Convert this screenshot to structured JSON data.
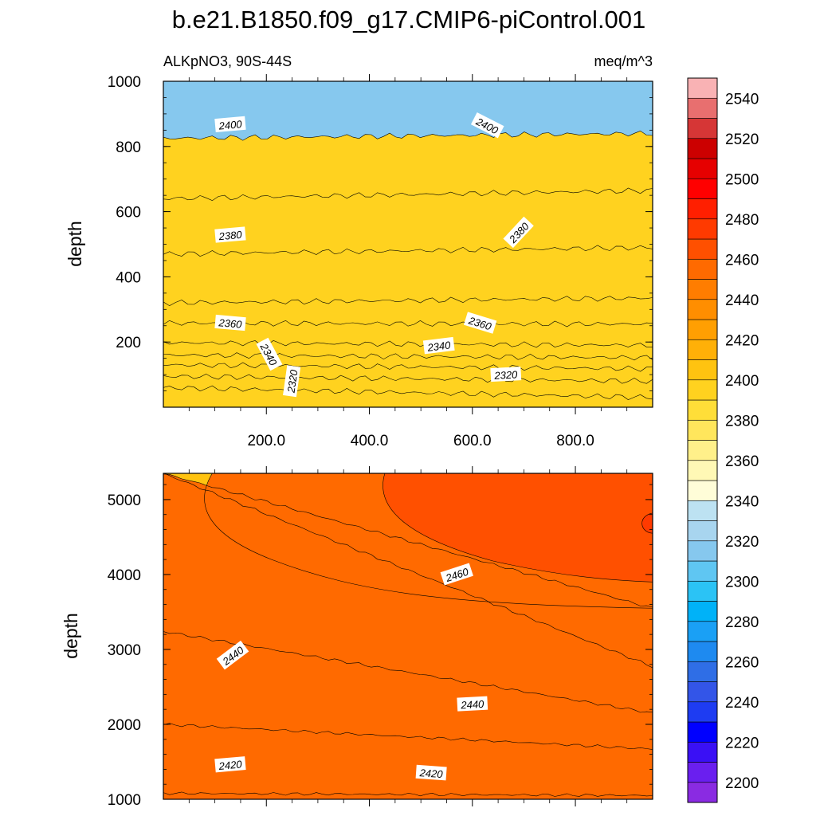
{
  "title": "b.e21.B1850.f09_g17.CMIP6-piControl.001",
  "subtitle_left": "ALKpNO3, 90S-44S",
  "subtitle_right": "meq/m^3",
  "chart_data": [
    {
      "type": "contour",
      "panel": "upper",
      "xlabel": "",
      "ylabel": "depth",
      "xlim": [
        0,
        950
      ],
      "ylim": [
        1000,
        0
      ],
      "x_ticks": [
        200,
        400,
        600,
        800
      ],
      "x_tick_labels": [
        "200.0",
        "400.0",
        "600.0",
        "800.0"
      ],
      "y_ticks": [
        200,
        400,
        600,
        800,
        1000
      ],
      "y_tick_labels": [
        "200",
        "400",
        "600",
        "800",
        "1000"
      ],
      "contours": [
        {
          "value": 2320,
          "depth_left": 60,
          "depth_right": 30
        },
        {
          "value": 2325,
          "depth_left": 95,
          "depth_right": 80
        },
        {
          "value": 2330,
          "depth_left": 130,
          "depth_right": 118
        },
        {
          "value": 2335,
          "depth_left": 160,
          "depth_right": 152
        },
        {
          "value": 2340,
          "depth_left": 198,
          "depth_right": 190
        },
        {
          "value": 2350,
          "depth_left": 258,
          "depth_right": 255
        },
        {
          "value": 2360,
          "depth_left": 320,
          "depth_right": 335
        },
        {
          "value": 2370,
          "depth_left": 470,
          "depth_right": 490
        },
        {
          "value": 2380,
          "depth_left": 640,
          "depth_right": 665
        },
        {
          "value": 2390,
          "depth_left": 825,
          "depth_right": 840
        }
      ],
      "contour_labels": [
        {
          "text": "2320",
          "x": 250,
          "depth": 80,
          "angle": -82
        },
        {
          "text": "2320",
          "x": 665,
          "depth": 100,
          "angle": -3
        },
        {
          "text": "2340",
          "x": 205,
          "depth": 162,
          "angle": 62
        },
        {
          "text": "2340",
          "x": 535,
          "depth": 188,
          "angle": -7
        },
        {
          "text": "2360",
          "x": 130,
          "depth": 258,
          "angle": 5
        },
        {
          "text": "2360",
          "x": 615,
          "depth": 258,
          "angle": 17
        },
        {
          "text": "2380",
          "x": 130,
          "depth": 528,
          "angle": -5
        },
        {
          "text": "2380",
          "x": 690,
          "depth": 536,
          "angle": -47
        },
        {
          "text": "2400",
          "x": 130,
          "depth": 867,
          "angle": -5
        },
        {
          "text": "2400",
          "x": 629,
          "depth": 864,
          "angle": 27
        }
      ]
    },
    {
      "type": "contour",
      "panel": "lower",
      "xlabel": "",
      "ylabel": "depth",
      "xlim": [
        0,
        950
      ],
      "ylim": [
        5350,
        1000
      ],
      "x_ticks": [
        200,
        400,
        600,
        800
      ],
      "y_ticks": [
        1000,
        2000,
        3000,
        4000,
        5000
      ],
      "y_tick_labels": [
        "1000",
        "2000",
        "3000",
        "4000",
        "5000"
      ],
      "contours": [
        {
          "value": 2410,
          "depth_left": 1080,
          "depth_right": 1050
        },
        {
          "value": 2420,
          "depth_left": 2000,
          "depth_right": 1670
        },
        {
          "value": 2430,
          "depth_left": 3240,
          "depth_right": 2150
        },
        {
          "value": 2440,
          "depth_left": 5350,
          "depth_right": 2770
        },
        {
          "value": 2450,
          "depth_left": 5350,
          "depth_right": 3550
        }
      ],
      "contour_labels": [
        {
          "text": "2420",
          "x": 130,
          "depth": 1460,
          "angle": -5
        },
        {
          "text": "2420",
          "x": 520,
          "depth": 1350,
          "angle": 4
        },
        {
          "text": "2440",
          "x": 135,
          "depth": 2920,
          "angle": -37
        },
        {
          "text": "2440",
          "x": 600,
          "depth": 2270,
          "angle": -3
        },
        {
          "text": "2460",
          "x": 570,
          "depth": 4000,
          "angle": -18
        }
      ]
    }
  ],
  "colorbar": {
    "levels": [
      2200,
      2220,
      2240,
      2260,
      2280,
      2300,
      2320,
      2340,
      2360,
      2380,
      2400,
      2420,
      2440,
      2460,
      2480,
      2500,
      2520,
      2540
    ],
    "colors": [
      "#8a2be2",
      "#6a1fef",
      "#3a10f5",
      "#0000ff",
      "#1e3cf2",
      "#3355e8",
      "#2f6ee6",
      "#1e8af0",
      "#1aa0f5",
      "#00b2f8",
      "#2bc3f5",
      "#5fc6f2",
      "#86c8ee",
      "#a8d5ef",
      "#bde2f2",
      "#fffdd8",
      "#fff8b5",
      "#fff08a",
      "#ffe65c",
      "#ffde38",
      "#ffd21f",
      "#ffc310",
      "#ffb008",
      "#ff9f02",
      "#ff8e00",
      "#ff7d00",
      "#ff6a00",
      "#ff5000",
      "#ff3a00",
      "#ff1f00",
      "#ff0000",
      "#e60000",
      "#cc0000",
      "#d63636",
      "#e86f6f",
      "#f9b2b4"
    ],
    "tick_labels": [
      "2200",
      "2220",
      "2240",
      "2260",
      "2280",
      "2300",
      "2320",
      "2340",
      "2360",
      "2380",
      "2400",
      "2420",
      "2440",
      "2460",
      "2480",
      "2500",
      "2520",
      "2540"
    ]
  }
}
